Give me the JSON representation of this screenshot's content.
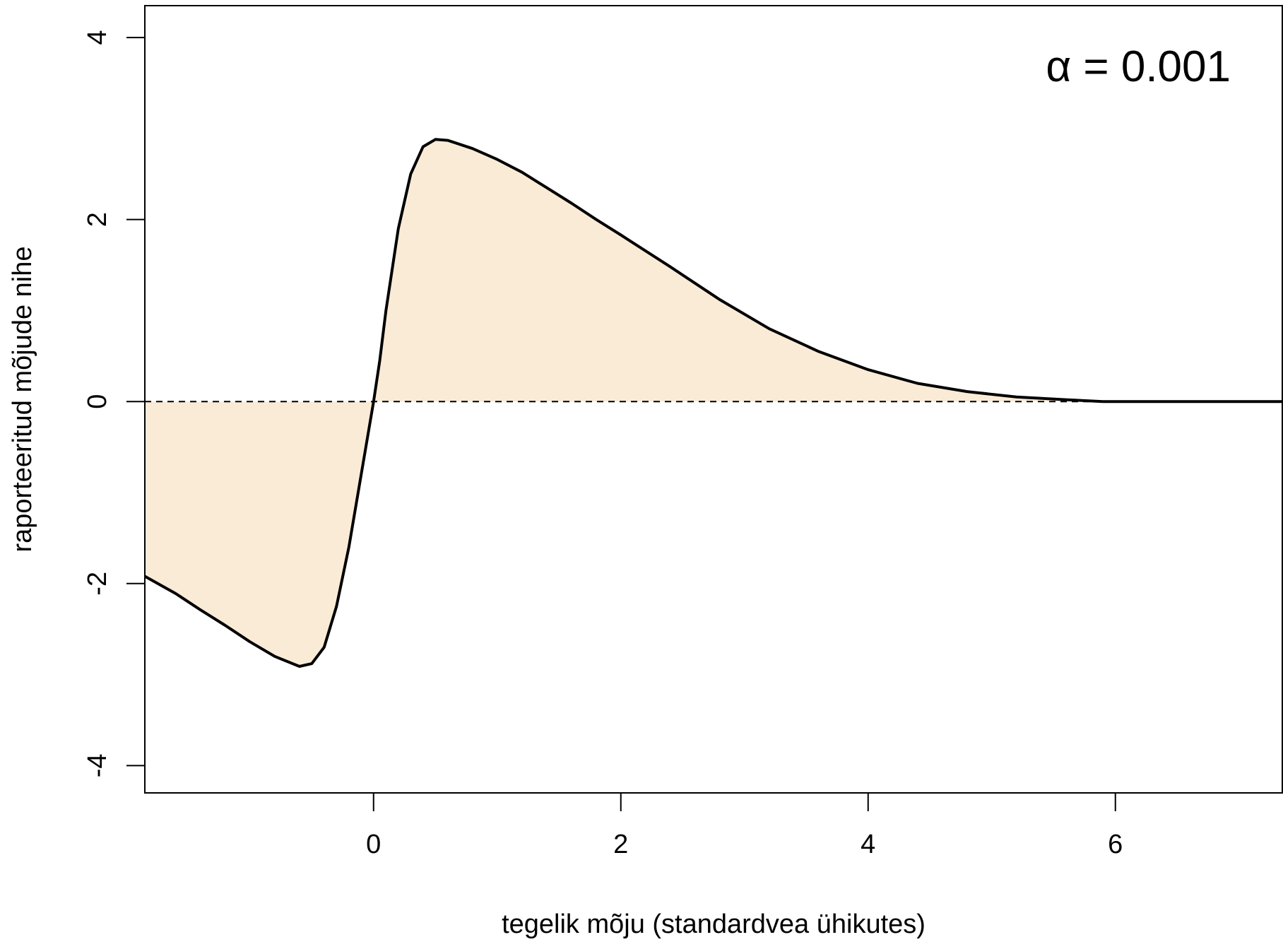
{
  "chart_data": {
    "type": "area",
    "title": "",
    "annotation": "α = 0.001",
    "xlabel": "tegelik mõju (standardvea ühikutes)",
    "ylabel": "raporteeritud mõjude nihe",
    "xlim": [
      -1.85,
      7.35
    ],
    "ylim": [
      -4.3,
      4.35
    ],
    "x_ticks": [
      0,
      2,
      4,
      6
    ],
    "x_tick_labels": [
      "0",
      "2",
      "4",
      "6"
    ],
    "y_ticks": [
      -4,
      -2,
      0,
      2,
      4
    ],
    "y_tick_labels": [
      "-4",
      "-2",
      "0",
      "2",
      "4"
    ],
    "reference_line": {
      "y": 0,
      "style": "dashed"
    },
    "grid": false,
    "fill_color": "#faebd7",
    "line_color": "#000000",
    "series": [
      {
        "x": [
          -1.85,
          -1.6,
          -1.4,
          -1.2,
          -1.0,
          -0.8,
          -0.6,
          -0.5,
          -0.4,
          -0.3,
          -0.2,
          -0.1,
          0.0,
          0.05,
          0.1,
          0.2,
          0.3,
          0.4,
          0.5,
          0.6,
          0.8,
          1.0,
          1.2,
          1.4,
          1.6,
          1.8,
          2.0,
          2.4,
          2.8,
          3.2,
          3.6,
          4.0,
          4.4,
          4.8,
          5.2,
          5.6,
          5.9,
          6.2,
          6.6,
          7.0,
          7.35
        ],
        "y": [
          -1.92,
          -2.11,
          -2.29,
          -2.46,
          -2.64,
          -2.8,
          -2.91,
          -2.88,
          -2.7,
          -2.25,
          -1.6,
          -0.8,
          0.0,
          0.45,
          1.0,
          1.9,
          2.5,
          2.8,
          2.88,
          2.87,
          2.78,
          2.66,
          2.52,
          2.35,
          2.18,
          2.0,
          1.83,
          1.48,
          1.12,
          0.8,
          0.55,
          0.35,
          0.2,
          0.11,
          0.05,
          0.02,
          0.0,
          0.0,
          0.0,
          0.0,
          0.0
        ]
      }
    ]
  }
}
